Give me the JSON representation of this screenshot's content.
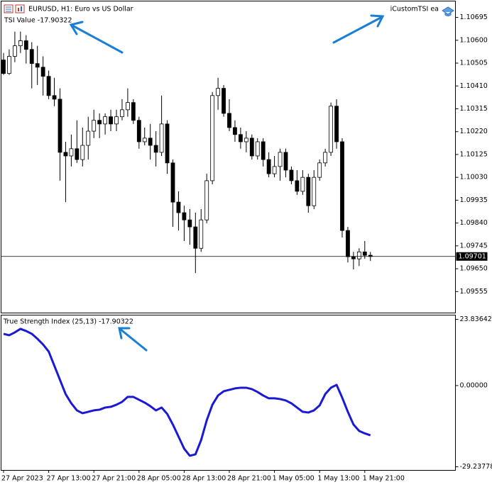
{
  "chart_data": [
    {
      "type": "candlestick",
      "title": "EURUSD, H1:  Euro vs US Dollar",
      "annotations": [
        "TSI Value -17.90322",
        "iCustomTSI ea"
      ],
      "up_color": "#ffffff",
      "down_color": "#000000",
      "last_price": 1.09701,
      "ylim": [
        1.09466,
        1.10763
      ],
      "yticks": [
        1.10695,
        {
          "value": 1.106,
          "label": "1.10600"
        },
        1.10505,
        {
          "value": 1.1041,
          "label": "1.10410"
        },
        1.10315,
        {
          "value": 1.1022,
          "label": "1.10220"
        },
        1.10125,
        {
          "value": 1.1003,
          "label": "1.10030"
        },
        1.09935,
        {
          "value": 1.0984,
          "label": "1.09840"
        },
        1.09745,
        {
          "value": 1.0965,
          "label": "1.09650"
        },
        1.09555
      ],
      "open": [
        1.10518,
        1.10462,
        1.10533,
        1.10577,
        1.10598,
        1.10562,
        1.10503,
        1.10488,
        1.1045,
        1.1037,
        1.10355,
        1.10134,
        1.10119,
        1.10149,
        1.10104,
        1.10163,
        1.10222,
        1.10267,
        1.10252,
        1.10282,
        1.10252,
        1.10282,
        1.10311,
        1.10341,
        1.10267,
        1.10178,
        1.10193,
        1.10163,
        1.10134,
        1.10252,
        1.1009,
        1.09927,
        1.09883,
        1.09853,
        1.09824,
        1.09735,
        1.09853,
        1.10016,
        1.1037,
        1.104,
        1.10296,
        1.10237,
        1.10208,
        1.10178,
        1.10193,
        1.10119,
        1.10178,
        1.10104,
        1.10045,
        1.10075,
        1.10134,
        1.1006,
        1.10016,
        1.09972,
        1.1003,
        1.09912,
        1.1003,
        1.1009,
        1.10134,
        1.10326,
        1.10178,
        1.09809,
        1.097,
        1.09691,
        1.0972,
        1.09706
      ],
      "high": [
        1.10547,
        1.10562,
        1.10636,
        1.10636,
        1.10621,
        1.10592,
        1.10577,
        1.10533,
        1.10474,
        1.10444,
        1.104,
        1.10178,
        1.10208,
        1.10267,
        1.10237,
        1.10282,
        1.10311,
        1.10296,
        1.10296,
        1.10311,
        1.10311,
        1.10355,
        1.104,
        1.10355,
        1.10282,
        1.10237,
        1.10252,
        1.10222,
        1.1037,
        1.10267,
        1.10104,
        1.09972,
        1.09912,
        1.09898,
        1.09883,
        1.09898,
        1.10045,
        1.10385,
        1.10444,
        1.10414,
        1.10355,
        1.10267,
        1.10237,
        1.10222,
        1.10208,
        1.10193,
        1.10193,
        1.10134,
        1.10119,
        1.10149,
        1.10149,
        1.10075,
        1.1006,
        1.1006,
        1.10045,
        1.1006,
        1.10104,
        1.10149,
        1.10341,
        1.10355,
        1.10193,
        1.09824,
        1.0972,
        1.09735,
        1.09765,
        1.0972
      ],
      "low": [
        1.10456,
        1.10456,
        1.10509,
        1.10547,
        1.10503,
        1.104,
        1.10414,
        1.1037,
        1.10355,
        1.10326,
        1.10016,
        1.09927,
        1.10075,
        1.1009,
        1.10075,
        1.10104,
        1.10193,
        1.10193,
        1.10208,
        1.10222,
        1.10222,
        1.10267,
        1.10282,
        1.10252,
        1.10149,
        1.10163,
        1.10104,
        1.10075,
        1.10119,
        1.10045,
        1.09824,
        1.09809,
        1.09765,
        1.0975,
        1.09632,
        1.0972,
        1.09839,
        1.10001,
        1.10311,
        1.10282,
        1.10222,
        1.10178,
        1.10149,
        1.10134,
        1.10104,
        1.10104,
        1.10075,
        1.1003,
        1.1003,
        1.10016,
        1.1003,
        1.10001,
        1.09957,
        1.09957,
        1.09883,
        1.09898,
        1.10016,
        1.10075,
        1.10119,
        1.10149,
        1.0978,
        1.09676,
        1.09647,
        1.09661,
        1.09691,
        1.09682
      ],
      "close": [
        1.10462,
        1.10533,
        1.10577,
        1.10598,
        1.10562,
        1.10503,
        1.10488,
        1.1045,
        1.1037,
        1.10355,
        1.10134,
        1.10119,
        1.10149,
        1.10104,
        1.10163,
        1.10222,
        1.10267,
        1.10252,
        1.10282,
        1.10252,
        1.10282,
        1.10311,
        1.10341,
        1.10267,
        1.10178,
        1.10193,
        1.10163,
        1.10134,
        1.10252,
        1.1009,
        1.09927,
        1.09883,
        1.09853,
        1.09824,
        1.09735,
        1.09853,
        1.10016,
        1.1037,
        1.104,
        1.10296,
        1.10237,
        1.10208,
        1.10178,
        1.10193,
        1.10119,
        1.10178,
        1.10104,
        1.10045,
        1.10075,
        1.10134,
        1.1006,
        1.10016,
        1.09972,
        1.1003,
        1.09912,
        1.1003,
        1.1009,
        1.10134,
        1.10326,
        1.10178,
        1.09809,
        1.097,
        1.09691,
        1.0972,
        1.09706,
        1.09701
      ]
    },
    {
      "type": "line",
      "title": "True Strength Index (25,13) -17.90322",
      "color": "#1a1ad6",
      "ylim": [
        -30.51,
        25.37
      ],
      "yticks": [
        23.83642,
        {
          "value": 0,
          "label": "0.00000"
        },
        -29.23778
      ],
      "categories": [
        "27 Apr 2023",
        null,
        null,
        null,
        null,
        null,
        null,
        null,
        "27 Apr 13:00",
        null,
        null,
        null,
        null,
        null,
        null,
        null,
        "27 Apr 21:00",
        null,
        null,
        null,
        null,
        null,
        null,
        null,
        "28 Apr 05:00",
        null,
        null,
        null,
        null,
        null,
        null,
        null,
        "28 Apr 13:00",
        null,
        null,
        null,
        null,
        null,
        null,
        null,
        "28 Apr 21:00",
        null,
        null,
        null,
        null,
        null,
        null,
        null,
        "1 May 05:00",
        null,
        null,
        null,
        null,
        null,
        null,
        null,
        "1 May 13:00",
        null,
        null,
        null,
        null,
        null,
        null,
        null,
        "1 May 21:00",
        null
      ],
      "values": [
        18.63,
        18.12,
        19.14,
        20.41,
        19.65,
        18.63,
        16.84,
        14.8,
        12.25,
        7.14,
        2.04,
        -3.06,
        -6.38,
        -8.93,
        -9.95,
        -9.44,
        -8.93,
        -8.68,
        -7.91,
        -7.65,
        -6.89,
        -5.87,
        -4.08,
        -4.08,
        -5.1,
        -6.12,
        -7.4,
        -8.93,
        -7.91,
        -10.21,
        -14.03,
        -18.37,
        -22.71,
        -25.26,
        -24.75,
        -19.65,
        -12.5,
        -6.89,
        -3.57,
        -2.04,
        -1.53,
        -1.02,
        -0.77,
        -0.77,
        -1.28,
        -2.3,
        -3.57,
        -4.59,
        -4.59,
        -4.85,
        -5.36,
        -6.38,
        -7.91,
        -9.44,
        -9.7,
        -8.93,
        -7.14,
        -3.06,
        -0.77,
        0.26,
        -4.34,
        -9.44,
        -14.03,
        -16.33,
        -17.2,
        -17.90322
      ]
    }
  ]
}
